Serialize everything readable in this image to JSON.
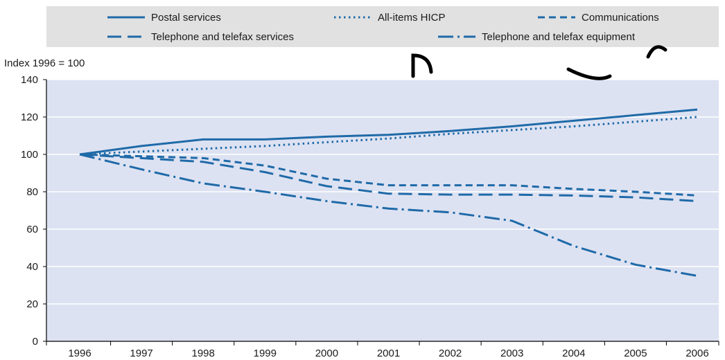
{
  "chart_data": {
    "type": "line",
    "ylabel": "Index 1996 = 100",
    "ylim": [
      0,
      140
    ],
    "yticks": [
      0,
      20,
      40,
      60,
      80,
      100,
      120,
      140
    ],
    "x": [
      "1996",
      "1997",
      "1998",
      "1999",
      "2000",
      "2001",
      "2002",
      "2003",
      "2004",
      "2005",
      "2006"
    ],
    "grid": true,
    "legend_position": "top",
    "series": [
      {
        "name": "Postal services",
        "dash": "solid",
        "color": "#1f6aa8",
        "values": [
          100,
          104.5,
          108,
          108,
          109.5,
          110.5,
          112.5,
          115,
          118,
          121,
          124
        ]
      },
      {
        "name": "All-items HICP",
        "dash": "dotted",
        "color": "#1f6aa8",
        "values": [
          100,
          101.5,
          103,
          104.5,
          106.5,
          108.5,
          111,
          113,
          115,
          117.5,
          120
        ]
      },
      {
        "name": "Communications",
        "dash": "dashed",
        "color": "#1f6aa8",
        "values": [
          100,
          99,
          98,
          94,
          87,
          83.5,
          83.5,
          83.5,
          81.5,
          80,
          78
        ]
      },
      {
        "name": "Telephone and telefax services",
        "dash": "longdash",
        "color": "#1f6aa8",
        "values": [
          100,
          98,
          96,
          90.5,
          83,
          79,
          78.5,
          78.5,
          78,
          77,
          75
        ]
      },
      {
        "name": "Telephone and telefax equipment",
        "dash": "dashdot",
        "color": "#1f6aa8",
        "values": [
          100,
          92,
          84.5,
          80,
          75,
          71,
          69,
          64.5,
          51,
          41,
          35
        ]
      }
    ],
    "colors": {
      "plot_background": "#dde2f2",
      "legend_background": "#e1e1e1",
      "grid": "#ffffff",
      "line": "#1f6aa8",
      "watermark": "#000000"
    }
  }
}
